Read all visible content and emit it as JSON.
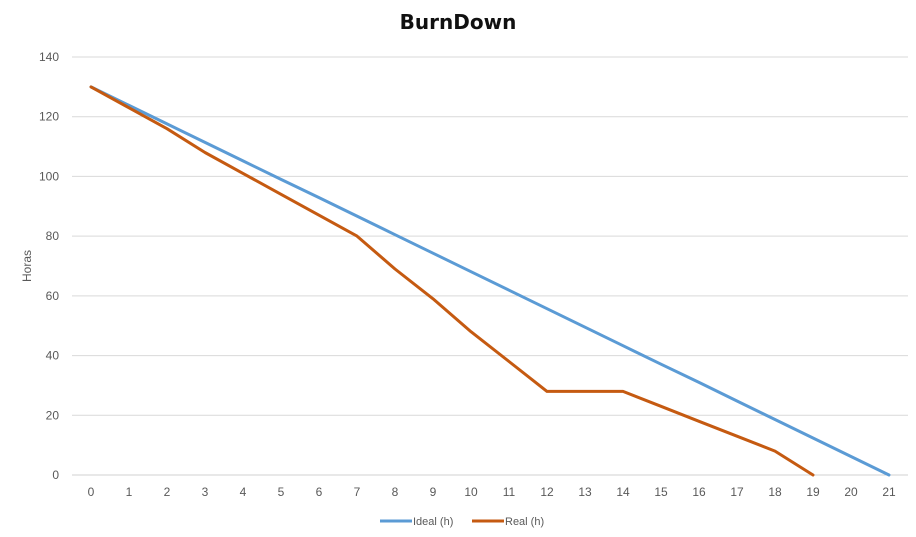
{
  "chart_data": {
    "type": "line",
    "title": "BurnDown",
    "xlabel": "",
    "ylabel": "Horas",
    "x": [
      0,
      1,
      2,
      3,
      4,
      5,
      6,
      7,
      8,
      9,
      10,
      11,
      12,
      13,
      14,
      15,
      16,
      17,
      18,
      19,
      20,
      21
    ],
    "ylim": [
      0,
      140
    ],
    "yticks": [
      0,
      20,
      40,
      60,
      80,
      100,
      120,
      140
    ],
    "grid": true,
    "legend_position": "bottom",
    "series": [
      {
        "name": "Ideal (h)",
        "color": "#5b9bd5",
        "values": [
          130,
          123.8,
          117.6,
          111.4,
          105.2,
          99.0,
          92.9,
          86.7,
          80.5,
          74.3,
          68.1,
          61.9,
          55.7,
          49.5,
          43.3,
          37.1,
          31.0,
          24.8,
          18.6,
          12.4,
          6.2,
          0
        ]
      },
      {
        "name": "Real (h)",
        "color": "#c55a11",
        "values": [
          130,
          123,
          116,
          108,
          101,
          94,
          87,
          80,
          69,
          59,
          48,
          38,
          28,
          28,
          28,
          23,
          18,
          13,
          8,
          0,
          null,
          null
        ]
      }
    ]
  }
}
